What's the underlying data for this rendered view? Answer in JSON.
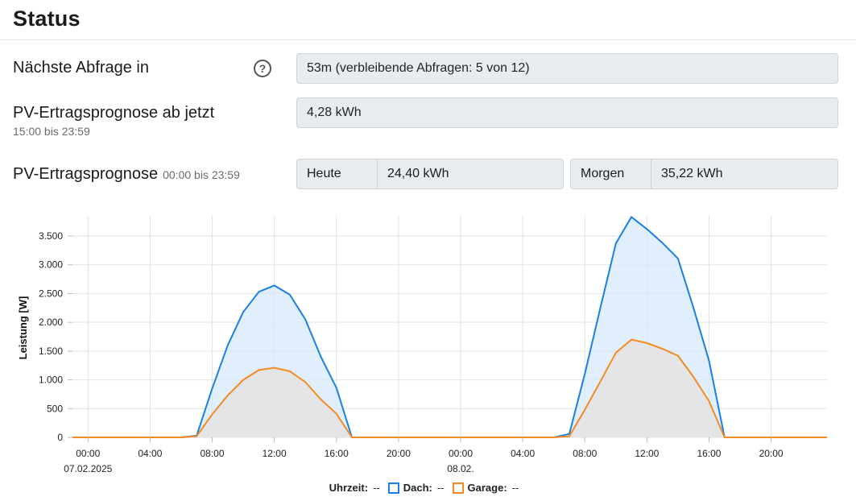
{
  "header": {
    "title": "Status"
  },
  "next_query": {
    "label": "Nächste Abfrage in",
    "help_icon": "question-circle-icon",
    "value": "53m (verbleibende Abfragen: 5 von 12)"
  },
  "forecast_now": {
    "label": "PV-Ertragsprognose ab jetzt",
    "sub": "15:00 bis 23:59",
    "value": "4,28 kWh"
  },
  "forecast_day": {
    "label": "PV-Ertragsprognose",
    "sub": "00:00 bis 23:59",
    "today_label": "Heute",
    "today_value": "24,40 kWh",
    "tomorrow_label": "Morgen",
    "tomorrow_value": "35,22 kWh"
  },
  "legend": {
    "time_label": "Uhrzeit:",
    "time_value": "--",
    "dach_label": "Dach:",
    "dach_value": "--",
    "garage_label": "Garage:",
    "garage_value": "--"
  },
  "chart_data": {
    "type": "area",
    "ylabel": "Leistung [W]",
    "ylim": [
      0,
      3850
    ],
    "yticks": [
      0,
      500,
      1000,
      1500,
      2000,
      2500,
      3000,
      3500
    ],
    "ytick_labels": [
      "0",
      "500",
      "1.000",
      "1.500",
      "2.000",
      "2.500",
      "3.000",
      "3.500"
    ],
    "xlim": [
      -1,
      47.6
    ],
    "xticks": [
      0,
      4,
      8,
      12,
      16,
      20,
      24,
      28,
      32,
      36,
      40,
      44
    ],
    "xtick_labels": [
      "00:00",
      "04:00",
      "08:00",
      "12:00",
      "16:00",
      "20:00",
      "00:00",
      "04:00",
      "08:00",
      "12:00",
      "16:00",
      "20:00"
    ],
    "xtick_sublabels": {
      "0": "07.02.2025",
      "24": "08.02."
    },
    "grid": true,
    "series": [
      {
        "name": "Dach",
        "color": "#1a7fe6",
        "fill": "#d6e9fa",
        "x": [
          -1,
          6,
          7,
          8,
          9,
          10,
          11,
          12,
          13,
          14,
          15,
          16,
          17,
          30,
          31,
          32,
          33,
          34,
          35,
          36,
          37,
          38,
          39,
          40,
          41,
          47.6
        ],
        "y": [
          0,
          0,
          30,
          850,
          1600,
          2180,
          2530,
          2640,
          2480,
          2050,
          1400,
          860,
          0,
          0,
          60,
          1100,
          2250,
          3370,
          3830,
          3620,
          3380,
          3110,
          2250,
          1330,
          0,
          0
        ]
      },
      {
        "name": "Garage",
        "color": "#f58a1f",
        "fill": "#e6e2df",
        "x": [
          -1,
          6,
          7,
          8,
          9,
          10,
          11,
          12,
          13,
          14,
          15,
          16,
          17,
          30,
          31,
          32,
          33,
          34,
          35,
          36,
          37,
          38,
          39,
          40,
          41,
          47.6
        ],
        "y": [
          0,
          0,
          20,
          400,
          730,
          1000,
          1170,
          1210,
          1150,
          960,
          660,
          410,
          0,
          0,
          20,
          480,
          970,
          1470,
          1700,
          1640,
          1540,
          1420,
          1050,
          630,
          0,
          0
        ]
      }
    ]
  }
}
